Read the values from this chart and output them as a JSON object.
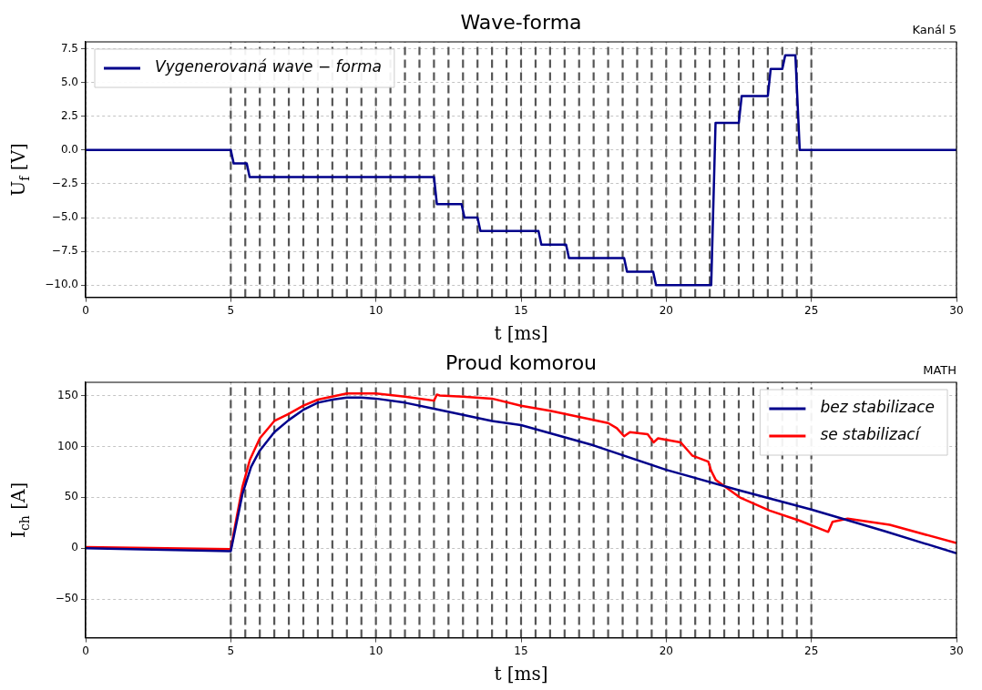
{
  "chart_data": [
    {
      "type": "line",
      "title": "Wave-forma",
      "xlabel": "t [ms]",
      "ylabel": "U$_{f}$ [V]",
      "annotations": [
        "Kanál 5"
      ],
      "xlim": [
        0,
        30
      ],
      "ylim": [
        -10.9,
        8.0
      ],
      "xticks": [
        0,
        5,
        10,
        15,
        20,
        25,
        30
      ],
      "yticks": [
        {
          "value": -10,
          "label": "−10.0"
        },
        {
          "value": -7.5,
          "label": "−7.5"
        },
        {
          "value": -5,
          "label": "−5.0"
        },
        {
          "value": -2.5,
          "label": "−2.5"
        },
        {
          "value": 0,
          "label": "0.0"
        },
        {
          "value": 2.5,
          "label": "2.5"
        },
        {
          "value": 5,
          "label": "5.0"
        },
        {
          "value": 7.5,
          "label": "7.5"
        }
      ],
      "grid": true,
      "legend": "top left",
      "series": [
        {
          "name": "Vygenerovaná wave − forma",
          "color": "#00008b",
          "x": [
            0,
            5.0,
            5.1,
            5.55,
            5.65,
            12.0,
            12.1,
            12.95,
            13.05,
            13.5,
            13.6,
            15.6,
            15.7,
            16.55,
            16.65,
            18.55,
            18.65,
            19.55,
            19.65,
            21.55,
            21.7,
            22.5,
            22.6,
            23.5,
            23.6,
            24.0,
            24.1,
            24.45,
            24.6,
            30
          ],
          "values": [
            0,
            0,
            -1,
            -1,
            -2,
            -2,
            -4,
            -4,
            -5,
            -5,
            -6,
            -6,
            -7,
            -7,
            -8,
            -8,
            -9,
            -9,
            -10,
            -10,
            2,
            2,
            4,
            4,
            6,
            6,
            7,
            7,
            0,
            0
          ]
        }
      ],
      "ref_lines": [
        {
          "axis": "x",
          "value": 5,
          "color": "#555555",
          "line_style": "dashed"
        },
        {
          "axis": "x",
          "value": 5.5,
          "color": "#555555",
          "line_style": "dashed"
        },
        {
          "axis": "x",
          "value": 6,
          "color": "#555555",
          "line_style": "dashed"
        },
        {
          "axis": "x",
          "value": 6.5,
          "color": "#555555",
          "line_style": "dashed"
        },
        {
          "axis": "x",
          "value": 7,
          "color": "#555555",
          "line_style": "dashed"
        },
        {
          "axis": "x",
          "value": 7.5,
          "color": "#555555",
          "line_style": "dashed"
        },
        {
          "axis": "x",
          "value": 8,
          "color": "#555555",
          "line_style": "dashed"
        },
        {
          "axis": "x",
          "value": 8.5,
          "color": "#555555",
          "line_style": "dashed"
        },
        {
          "axis": "x",
          "value": 9,
          "color": "#555555",
          "line_style": "dashed"
        },
        {
          "axis": "x",
          "value": 9.5,
          "color": "#555555",
          "line_style": "dashed"
        },
        {
          "axis": "x",
          "value": 10,
          "color": "#555555",
          "line_style": "dashed"
        },
        {
          "axis": "x",
          "value": 10.5,
          "color": "#555555",
          "line_style": "dashed"
        },
        {
          "axis": "x",
          "value": 11,
          "color": "#555555",
          "line_style": "dashed"
        },
        {
          "axis": "x",
          "value": 11.5,
          "color": "#555555",
          "line_style": "dashed"
        },
        {
          "axis": "x",
          "value": 12,
          "color": "#555555",
          "line_style": "dashed"
        },
        {
          "axis": "x",
          "value": 12.5,
          "color": "#555555",
          "line_style": "dashed"
        },
        {
          "axis": "x",
          "value": 13,
          "color": "#555555",
          "line_style": "dashed"
        },
        {
          "axis": "x",
          "value": 13.5,
          "color": "#555555",
          "line_style": "dashed"
        },
        {
          "axis": "x",
          "value": 14,
          "color": "#555555",
          "line_style": "dashed"
        },
        {
          "axis": "x",
          "value": 14.5,
          "color": "#555555",
          "line_style": "dashed"
        },
        {
          "axis": "x",
          "value": 15,
          "color": "#555555",
          "line_style": "dashed"
        },
        {
          "axis": "x",
          "value": 15.5,
          "color": "#555555",
          "line_style": "dashed"
        },
        {
          "axis": "x",
          "value": 16,
          "color": "#555555",
          "line_style": "dashed"
        },
        {
          "axis": "x",
          "value": 16.5,
          "color": "#555555",
          "line_style": "dashed"
        },
        {
          "axis": "x",
          "value": 17,
          "color": "#555555",
          "line_style": "dashed"
        },
        {
          "axis": "x",
          "value": 17.5,
          "color": "#555555",
          "line_style": "dashed"
        },
        {
          "axis": "x",
          "value": 18,
          "color": "#555555",
          "line_style": "dashed"
        },
        {
          "axis": "x",
          "value": 18.5,
          "color": "#555555",
          "line_style": "dashed"
        },
        {
          "axis": "x",
          "value": 19,
          "color": "#555555",
          "line_style": "dashed"
        },
        {
          "axis": "x",
          "value": 19.5,
          "color": "#555555",
          "line_style": "dashed"
        },
        {
          "axis": "x",
          "value": 20,
          "color": "#555555",
          "line_style": "dashed"
        },
        {
          "axis": "x",
          "value": 20.5,
          "color": "#555555",
          "line_style": "dashed"
        },
        {
          "axis": "x",
          "value": 21,
          "color": "#555555",
          "line_style": "dashed"
        },
        {
          "axis": "x",
          "value": 21.5,
          "color": "#555555",
          "line_style": "dashed"
        },
        {
          "axis": "x",
          "value": 22,
          "color": "#555555",
          "line_style": "dashed"
        },
        {
          "axis": "x",
          "value": 22.5,
          "color": "#555555",
          "line_style": "dashed"
        },
        {
          "axis": "x",
          "value": 23,
          "color": "#555555",
          "line_style": "dashed"
        },
        {
          "axis": "x",
          "value": 23.5,
          "color": "#555555",
          "line_style": "dashed"
        },
        {
          "axis": "x",
          "value": 24,
          "color": "#555555",
          "line_style": "dashed"
        },
        {
          "axis": "x",
          "value": 24.5,
          "color": "#555555",
          "line_style": "dashed"
        },
        {
          "axis": "x",
          "value": 25,
          "color": "#555555",
          "line_style": "dashed"
        }
      ]
    },
    {
      "type": "line",
      "title": "Proud komorou",
      "xlabel": "t [ms]",
      "ylabel": "I$_{ch}$ [A]",
      "annotations": [
        "MATH"
      ],
      "xlim": [
        0,
        30
      ],
      "ylim": [
        -88,
        163
      ],
      "xticks": [
        0,
        5,
        10,
        15,
        20,
        25,
        30
      ],
      "yticks": [
        {
          "value": -50,
          "label": "−50"
        },
        0,
        50,
        100,
        150
      ],
      "grid": true,
      "legend": "top right",
      "series": [
        {
          "name": "bez stabilizace",
          "color": "#00008b",
          "x": [
            0,
            5,
            5.2,
            5.4,
            5.7,
            6,
            6.5,
            7,
            7.5,
            8,
            8.5,
            9,
            9.5,
            10,
            11,
            12,
            13,
            14,
            15,
            17.5,
            20,
            22.5,
            25,
            27.5,
            30
          ],
          "values": [
            0,
            -3,
            25,
            53,
            80,
            96,
            114,
            126,
            136,
            143,
            146,
            148,
            148,
            147,
            143,
            137,
            131,
            125,
            121,
            101,
            77,
            57,
            38,
            17,
            -5
          ]
        },
        {
          "name": "se stabilizací",
          "color": "#ff0000",
          "x": [
            0,
            5,
            5.2,
            5.4,
            5.66,
            6,
            6.5,
            7,
            7.5,
            8,
            9,
            10,
            11,
            12,
            12.1,
            12.2,
            13,
            14,
            15,
            16,
            17,
            18,
            18.3,
            18.55,
            18.75,
            19.36,
            19.57,
            19.72,
            20.5,
            20.9,
            21.45,
            21.55,
            21.71,
            22.53,
            23.56,
            24.6,
            25.58,
            25.73,
            26.25,
            27.7,
            30
          ],
          "values": [
            1,
            -1,
            30,
            60,
            87,
            108,
            125,
            132,
            140,
            146,
            152,
            152,
            149,
            145,
            151,
            150,
            149,
            147,
            140,
            135,
            129,
            123,
            118,
            110,
            114,
            112,
            104,
            108,
            104,
            91,
            85,
            76,
            67,
            50,
            37,
            27,
            16,
            26,
            29,
            23,
            5
          ]
        }
      ],
      "ref_lines": [
        {
          "axis": "x",
          "value": 5,
          "color": "#555555",
          "line_style": "dashed"
        },
        {
          "axis": "x",
          "value": 5.5,
          "color": "#555555",
          "line_style": "dashed"
        },
        {
          "axis": "x",
          "value": 6,
          "color": "#555555",
          "line_style": "dashed"
        },
        {
          "axis": "x",
          "value": 6.5,
          "color": "#555555",
          "line_style": "dashed"
        },
        {
          "axis": "x",
          "value": 7,
          "color": "#555555",
          "line_style": "dashed"
        },
        {
          "axis": "x",
          "value": 7.5,
          "color": "#555555",
          "line_style": "dashed"
        },
        {
          "axis": "x",
          "value": 8,
          "color": "#555555",
          "line_style": "dashed"
        },
        {
          "axis": "x",
          "value": 8.5,
          "color": "#555555",
          "line_style": "dashed"
        },
        {
          "axis": "x",
          "value": 9,
          "color": "#555555",
          "line_style": "dashed"
        },
        {
          "axis": "x",
          "value": 9.5,
          "color": "#555555",
          "line_style": "dashed"
        },
        {
          "axis": "x",
          "value": 10,
          "color": "#555555",
          "line_style": "dashed"
        },
        {
          "axis": "x",
          "value": 10.5,
          "color": "#555555",
          "line_style": "dashed"
        },
        {
          "axis": "x",
          "value": 11,
          "color": "#555555",
          "line_style": "dashed"
        },
        {
          "axis": "x",
          "value": 11.5,
          "color": "#555555",
          "line_style": "dashed"
        },
        {
          "axis": "x",
          "value": 12,
          "color": "#555555",
          "line_style": "dashed"
        },
        {
          "axis": "x",
          "value": 12.5,
          "color": "#555555",
          "line_style": "dashed"
        },
        {
          "axis": "x",
          "value": 13,
          "color": "#555555",
          "line_style": "dashed"
        },
        {
          "axis": "x",
          "value": 13.5,
          "color": "#555555",
          "line_style": "dashed"
        },
        {
          "axis": "x",
          "value": 14,
          "color": "#555555",
          "line_style": "dashed"
        },
        {
          "axis": "x",
          "value": 14.5,
          "color": "#555555",
          "line_style": "dashed"
        },
        {
          "axis": "x",
          "value": 15,
          "color": "#555555",
          "line_style": "dashed"
        },
        {
          "axis": "x",
          "value": 15.5,
          "color": "#555555",
          "line_style": "dashed"
        },
        {
          "axis": "x",
          "value": 16,
          "color": "#555555",
          "line_style": "dashed"
        },
        {
          "axis": "x",
          "value": 16.5,
          "color": "#555555",
          "line_style": "dashed"
        },
        {
          "axis": "x",
          "value": 17,
          "color": "#555555",
          "line_style": "dashed"
        },
        {
          "axis": "x",
          "value": 17.5,
          "color": "#555555",
          "line_style": "dashed"
        },
        {
          "axis": "x",
          "value": 18,
          "color": "#555555",
          "line_style": "dashed"
        },
        {
          "axis": "x",
          "value": 18.5,
          "color": "#555555",
          "line_style": "dashed"
        },
        {
          "axis": "x",
          "value": 19,
          "color": "#555555",
          "line_style": "dashed"
        },
        {
          "axis": "x",
          "value": 19.5,
          "color": "#555555",
          "line_style": "dashed"
        },
        {
          "axis": "x",
          "value": 20,
          "color": "#555555",
          "line_style": "dashed"
        },
        {
          "axis": "x",
          "value": 20.5,
          "color": "#555555",
          "line_style": "dashed"
        },
        {
          "axis": "x",
          "value": 21,
          "color": "#555555",
          "line_style": "dashed"
        },
        {
          "axis": "x",
          "value": 21.5,
          "color": "#555555",
          "line_style": "dashed"
        },
        {
          "axis": "x",
          "value": 22,
          "color": "#555555",
          "line_style": "dashed"
        },
        {
          "axis": "x",
          "value": 22.5,
          "color": "#555555",
          "line_style": "dashed"
        },
        {
          "axis": "x",
          "value": 23,
          "color": "#555555",
          "line_style": "dashed"
        },
        {
          "axis": "x",
          "value": 23.5,
          "color": "#555555",
          "line_style": "dashed"
        },
        {
          "axis": "x",
          "value": 24,
          "color": "#555555",
          "line_style": "dashed"
        },
        {
          "axis": "x",
          "value": 24.5,
          "color": "#555555",
          "line_style": "dashed"
        },
        {
          "axis": "x",
          "value": 25,
          "color": "#555555",
          "line_style": "dashed"
        }
      ]
    }
  ]
}
